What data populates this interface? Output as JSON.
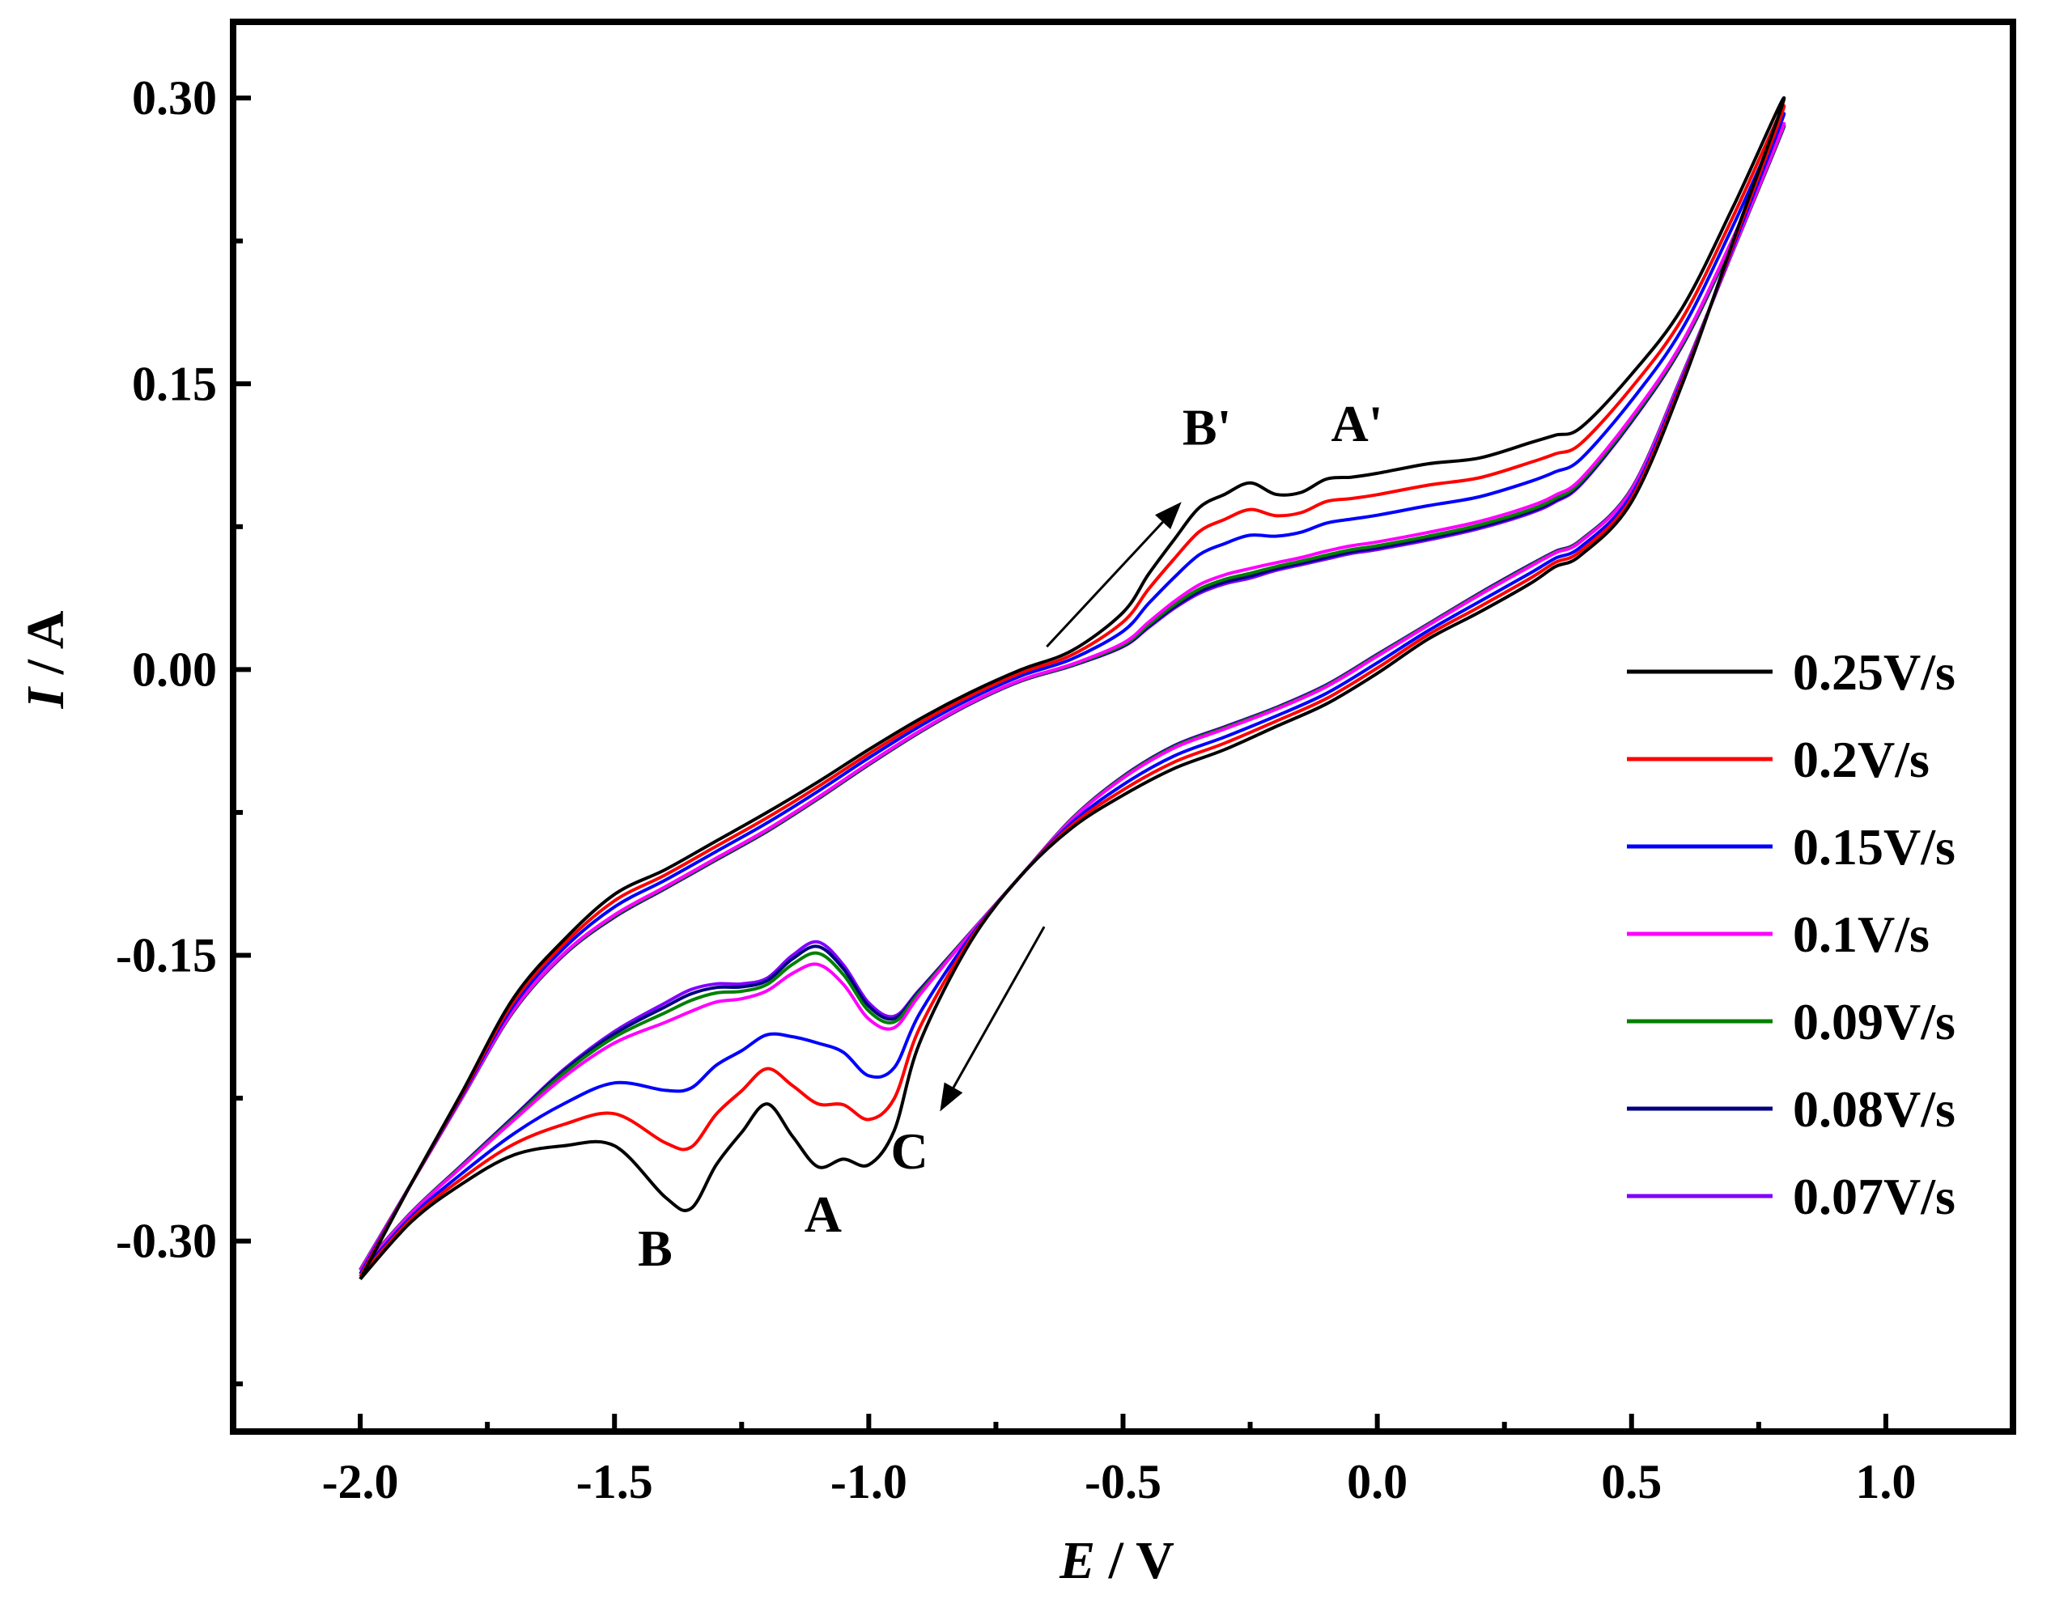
{
  "chart_data": {
    "type": "line",
    "title": "",
    "xlabel": "E / V",
    "ylabel": "I / A",
    "xlabel_parts": {
      "symbol": "E",
      "unit": " / V"
    },
    "ylabel_parts": {
      "symbol": "I",
      "unit": " / A"
    },
    "xlim": [
      -2.25,
      1.25
    ],
    "ylim": [
      -0.4,
      0.34
    ],
    "x_ticks": [
      -2.0,
      -1.5,
      -1.0,
      -0.5,
      0.0,
      0.5,
      1.0
    ],
    "x_tick_labels": [
      "-2.0",
      "-1.5",
      "-1.0",
      "-0.5",
      "0.0",
      "0.5",
      "1.0"
    ],
    "x_minor_ticks": [
      -1.75,
      -1.25,
      -0.75,
      -0.25,
      0.25,
      0.75
    ],
    "y_ticks": [
      -0.3,
      -0.15,
      0.0,
      0.15,
      0.3
    ],
    "y_tick_labels": [
      "-0.30",
      "-0.15",
      "0.00",
      "0.15",
      "0.30"
    ],
    "y_minor_ticks": [
      -0.375,
      -0.225,
      -0.075,
      0.075,
      0.225
    ],
    "grid": false,
    "legend_position": "right",
    "series": [
      {
        "name": "0.25V/s",
        "color": "#000000",
        "scale": 1.0
      },
      {
        "name": "0.2V/s",
        "color": "#ff0000",
        "scale": 0.72
      },
      {
        "name": "0.15V/s",
        "color": "#0000ff",
        "scale": 0.45
      },
      {
        "name": "0.1V/s",
        "color": "#ff00ff",
        "scale": 0.1
      },
      {
        "name": "0.09V/s",
        "color": "#008000",
        "scale": 0.05
      },
      {
        "name": "0.08V/s",
        "color": "#000080",
        "scale": 0.02
      },
      {
        "name": "0.07V/s",
        "color": "#8000ff",
        "scale": 0.0
      }
    ],
    "anodic_base": {
      "x": [
        -2.0,
        -1.9,
        -1.8,
        -1.7,
        -1.6,
        -1.5,
        -1.4,
        -1.3,
        -1.2,
        -1.1,
        -1.0,
        -0.9,
        -0.8,
        -0.7,
        -0.6,
        -0.5,
        -0.45,
        -0.4,
        -0.35,
        -0.3,
        -0.25,
        -0.2,
        -0.15,
        -0.1,
        -0.05,
        0.0,
        0.1,
        0.2,
        0.3,
        0.35,
        0.4,
        0.5,
        0.6,
        0.7,
        0.8
      ],
      "y": [
        -0.315,
        -0.27,
        -0.225,
        -0.18,
        -0.15,
        -0.13,
        -0.115,
        -0.1,
        -0.085,
        -0.068,
        -0.05,
        -0.033,
        -0.018,
        -0.006,
        0.002,
        0.012,
        0.022,
        0.032,
        0.04,
        0.045,
        0.048,
        0.052,
        0.055,
        0.058,
        0.061,
        0.063,
        0.068,
        0.074,
        0.082,
        0.088,
        0.097,
        0.13,
        0.17,
        0.225,
        0.285
      ]
    },
    "anodic_delta": {
      "x": [
        -2.0,
        -1.9,
        -1.8,
        -1.7,
        -1.6,
        -1.5,
        -1.4,
        -1.3,
        -1.2,
        -1.1,
        -1.0,
        -0.9,
        -0.8,
        -0.7,
        -0.6,
        -0.5,
        -0.45,
        -0.4,
        -0.35,
        -0.3,
        -0.25,
        -0.2,
        -0.15,
        -0.1,
        -0.05,
        0.0,
        0.1,
        0.2,
        0.3,
        0.35,
        0.4,
        0.5,
        0.6,
        0.7,
        0.8
      ],
      "y": [
        -0.005,
        0.0,
        0.003,
        0.007,
        0.008,
        0.012,
        0.01,
        0.01,
        0.01,
        0.009,
        0.008,
        0.007,
        0.006,
        0.006,
        0.008,
        0.018,
        0.028,
        0.036,
        0.045,
        0.047,
        0.05,
        0.04,
        0.038,
        0.042,
        0.04,
        0.04,
        0.04,
        0.037,
        0.037,
        0.035,
        0.03,
        0.025,
        0.02,
        0.018,
        0.015
      ]
    },
    "cathodic_base": {
      "x": [
        0.8,
        0.7,
        0.6,
        0.5,
        0.4,
        0.35,
        0.3,
        0.2,
        0.1,
        0.0,
        -0.1,
        -0.2,
        -0.3,
        -0.4,
        -0.5,
        -0.6,
        -0.7,
        -0.8,
        -0.9,
        -0.95,
        -1.0,
        -1.05,
        -1.1,
        -1.15,
        -1.2,
        -1.25,
        -1.3,
        -1.35,
        -1.4,
        -1.5,
        -1.6,
        -1.7,
        -1.8,
        -1.9,
        -2.0
      ],
      "y": [
        0.285,
        0.22,
        0.155,
        0.095,
        0.068,
        0.062,
        0.055,
        0.04,
        0.024,
        0.008,
        -0.008,
        -0.02,
        -0.03,
        -0.04,
        -0.056,
        -0.078,
        -0.108,
        -0.138,
        -0.168,
        -0.182,
        -0.175,
        -0.155,
        -0.143,
        -0.15,
        -0.162,
        -0.165,
        -0.165,
        -0.168,
        -0.175,
        -0.19,
        -0.21,
        -0.235,
        -0.26,
        -0.285,
        -0.315
      ]
    },
    "cathodic_delta": {
      "x": [
        0.8,
        0.7,
        0.6,
        0.5,
        0.4,
        0.35,
        0.3,
        0.2,
        0.1,
        0.0,
        -0.1,
        -0.2,
        -0.3,
        -0.4,
        -0.5,
        -0.6,
        -0.7,
        -0.8,
        -0.9,
        -0.95,
        -1.0,
        -1.05,
        -1.1,
        -1.15,
        -1.2,
        -1.25,
        -1.3,
        -1.35,
        -1.4,
        -1.5,
        -1.6,
        -1.7,
        -1.8,
        -1.9,
        -2.0
      ],
      "y": [
        0.012,
        0.005,
        -0.005,
        -0.007,
        -0.008,
        -0.008,
        -0.01,
        -0.01,
        -0.008,
        -0.01,
        -0.01,
        -0.01,
        -0.012,
        -0.012,
        -0.01,
        -0.005,
        0.0,
        -0.005,
        -0.028,
        -0.06,
        -0.085,
        -0.102,
        -0.118,
        -0.095,
        -0.066,
        -0.078,
        -0.095,
        -0.115,
        -0.102,
        -0.06,
        -0.04,
        -0.02,
        -0.01,
        -0.005,
        -0.005
      ]
    },
    "annotations": [
      {
        "text": "B",
        "x": -1.42,
        "y": -0.313
      },
      {
        "text": "A",
        "x": -1.09,
        "y": -0.295
      },
      {
        "text": "C",
        "x": -0.92,
        "y": -0.262
      },
      {
        "text": "B'",
        "x": -0.335,
        "y": 0.118
      },
      {
        "text": "A'",
        "x": -0.04,
        "y": 0.12
      }
    ],
    "arrows": [
      {
        "name": "anodic-scan-arrow",
        "x1": -0.65,
        "y1": 0.012,
        "x2": -0.385,
        "y2": 0.088
      },
      {
        "name": "cathodic-scan-arrow",
        "x1": -0.655,
        "y1": -0.135,
        "x2": -0.86,
        "y2": -0.232
      }
    ]
  }
}
